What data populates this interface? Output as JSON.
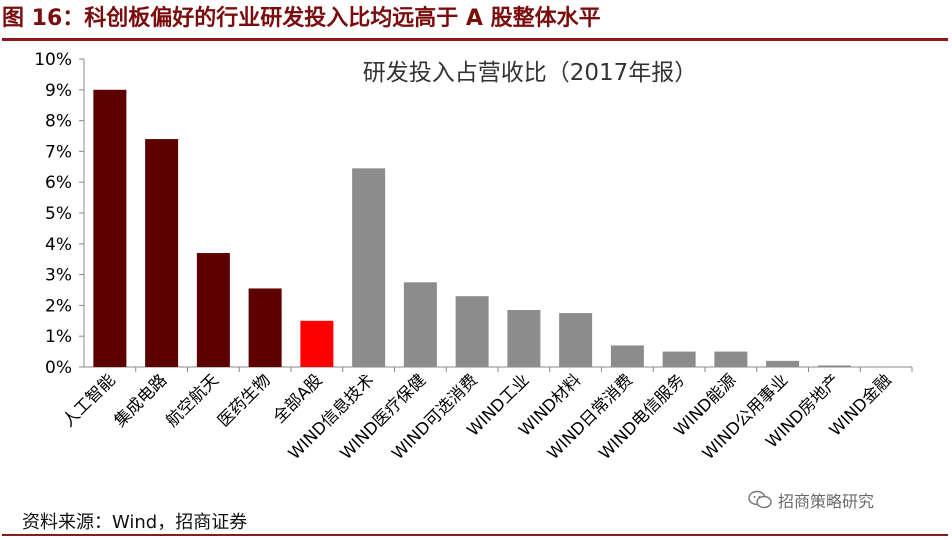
{
  "figure": {
    "title": "图 16：科创板偏好的行业研发投入比均远高于 A 股整体水平",
    "source": "资料来源：Wind，招商证券",
    "watermark": "招商策略研究"
  },
  "colors": {
    "kcb": "#5c0000",
    "all_a": "#ff0000",
    "wind": "#8c8c8c",
    "title": "#7b0c0c",
    "rule": "#8b1a1a"
  },
  "chart_data": {
    "type": "bar",
    "title": "研发投入占营收比（2017年报）",
    "xlabel": "",
    "ylabel": "",
    "ylim": [
      0,
      10
    ],
    "y_ticks": [
      "0%",
      "1%",
      "2%",
      "3%",
      "4%",
      "5%",
      "6%",
      "7%",
      "8%",
      "9%",
      "10%"
    ],
    "grid": false,
    "categories": [
      "人工智能",
      "集成电路",
      "航空航天",
      "医药生物",
      "全部A股",
      "WIND信息技术",
      "WIND医疗保健",
      "WIND可选消费",
      "WIND工业",
      "WIND材料",
      "WIND日常消费",
      "WIND电信服务",
      "WIND能源",
      "WIND公用事业",
      "WIND房地产",
      "WIND金融"
    ],
    "values": [
      9.0,
      7.4,
      3.7,
      2.55,
      1.5,
      6.45,
      2.75,
      2.3,
      1.85,
      1.75,
      0.7,
      0.5,
      0.5,
      0.2,
      0.05,
      0.01
    ],
    "bar_groups": [
      "kcb",
      "kcb",
      "kcb",
      "kcb",
      "all_a",
      "wind",
      "wind",
      "wind",
      "wind",
      "wind",
      "wind",
      "wind",
      "wind",
      "wind",
      "wind",
      "wind"
    ]
  }
}
